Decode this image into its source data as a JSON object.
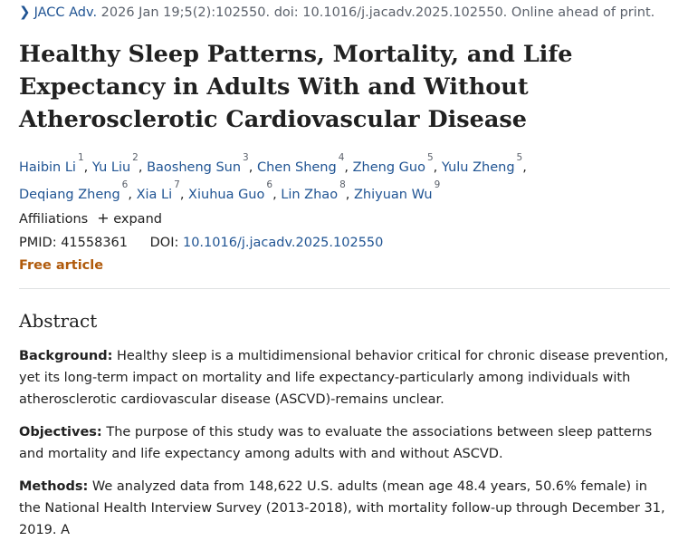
{
  "journal": {
    "name": "JACC Adv.",
    "citation": " 2026 Jan 19;5(2):102550. doi: 10.1016/j.jacadv.2025.102550. Online ahead of print."
  },
  "title": "Healthy Sleep Patterns, Mortality, and Life Expectancy in Adults With and Without Atherosclerotic Cardiovascular Disease",
  "authors": [
    {
      "name": "Haibin Li",
      "num": "1"
    },
    {
      "name": "Yu Liu",
      "num": "2"
    },
    {
      "name": "Baosheng Sun",
      "num": "3"
    },
    {
      "name": "Chen Sheng",
      "num": "4"
    },
    {
      "name": "Zheng Guo",
      "num": "5"
    },
    {
      "name": "Yulu Zheng",
      "num": "5"
    },
    {
      "name": "Deqiang Zheng",
      "num": "6"
    },
    {
      "name": "Xia Li",
      "num": "7"
    },
    {
      "name": "Xiuhua Guo",
      "num": "6"
    },
    {
      "name": "Lin Zhao",
      "num": "8"
    },
    {
      "name": "Zhiyuan Wu",
      "num": "9"
    }
  ],
  "affiliations": {
    "label": "Affiliations",
    "plus": "+",
    "expand": "expand"
  },
  "ids": {
    "pmid_label": "PMID:",
    "pmid": "41558361",
    "doi_label": "DOI:",
    "doi": "10.1016/j.jacadv.2025.102550"
  },
  "free_article": "Free article",
  "abstract": {
    "heading": "Abstract",
    "background_label": "Background:",
    "background_text": " Healthy sleep is a multidimensional behavior critical for chronic disease prevention, yet its long-term impact on mortality and life expectancy-particularly among individuals with atherosclerotic cardiovascular disease (ASCVD)-remains unclear.",
    "objectives_label": "Objectives:",
    "objectives_text": " The purpose of this study was to evaluate the associations between sleep patterns and mortality and life expectancy among adults with and without ASCVD.",
    "methods_label": "Methods:",
    "methods_text": " We analyzed data from 148,622 U.S. adults (mean age 48.4 years, 50.6% female) in the National Health Interview Survey (2013-2018), with mortality follow-up through December 31, 2019. A"
  },
  "colors": {
    "link": "#205493",
    "free": "#b05a0b",
    "text": "#212121",
    "muted": "#5b616b"
  }
}
